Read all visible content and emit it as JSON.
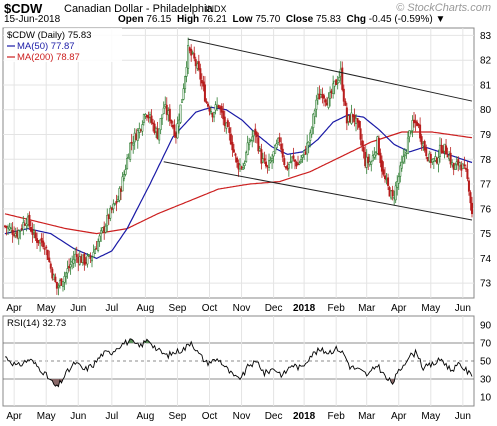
{
  "header": {
    "symbol": "$CDW",
    "name": "Canadian Dollar - Philadelphia",
    "exchange": "INDX",
    "logo": "© StockCharts.com",
    "date": "15-Jun-2018",
    "open_label": "Open",
    "open": "76.15",
    "high_label": "High",
    "high": "76.21",
    "low_label": "Low",
    "low": "75.70",
    "close_label": "Close",
    "close": "75.83",
    "chg_label": "Chg",
    "chg": "-0.45 (-0.59%)",
    "chg_arrow": "▼"
  },
  "legend": {
    "price_label": "$CDW (Daily) 75.83",
    "ma50_label": "MA(50) 77.87",
    "ma200_label": "MA(200) 78.87",
    "rsi_label": "RSI(14) 32.73"
  },
  "colors": {
    "bull": "#2e7d32",
    "bear": "#b71c1c",
    "ma50": "#1a1aa6",
    "ma200": "#cc1f1f",
    "rsi": "#000000",
    "grid": "#e4e4e4",
    "channel": "#222222",
    "overbought_fill": "#5a8f5a"
  },
  "chart_data": {
    "type": "candlestick",
    "x_ticks": [
      "Apr",
      "May",
      "Jun",
      "Jul",
      "Aug",
      "Sep",
      "Oct",
      "Nov",
      "Dec",
      "2018",
      "Feb",
      "Mar",
      "Apr",
      "May",
      "Jun"
    ],
    "y_ticks": [
      73,
      74,
      75,
      76,
      77,
      78,
      79,
      80,
      81,
      82,
      83
    ],
    "ylim": [
      72.4,
      83.3
    ],
    "rsi_ticks": [
      10,
      30,
      50,
      70,
      90
    ],
    "rsi_ylim": [
      0,
      100
    ],
    "rsi_levels": [
      30,
      50,
      70
    ],
    "close_anchors": [
      [
        0,
        75.3
      ],
      [
        8,
        75.0
      ],
      [
        14,
        75.6
      ],
      [
        20,
        74.8
      ],
      [
        26,
        74.6
      ],
      [
        30,
        73.6
      ],
      [
        34,
        72.8
      ],
      [
        40,
        73.4
      ],
      [
        46,
        74.1
      ],
      [
        52,
        73.9
      ],
      [
        56,
        74.0
      ],
      [
        62,
        74.8
      ],
      [
        68,
        75.7
      ],
      [
        74,
        76.4
      ],
      [
        78,
        77.4
      ],
      [
        82,
        78.6
      ],
      [
        88,
        79.2
      ],
      [
        92,
        80.0
      ],
      [
        96,
        79.5
      ],
      [
        100,
        79.0
      ],
      [
        104,
        80.1
      ],
      [
        108,
        79.7
      ],
      [
        112,
        79.0
      ],
      [
        116,
        80.5
      ],
      [
        120,
        82.4
      ],
      [
        124,
        82.0
      ],
      [
        128,
        81.3
      ],
      [
        132,
        80.3
      ],
      [
        136,
        79.9
      ],
      [
        140,
        80.2
      ],
      [
        144,
        79.4
      ],
      [
        148,
        78.8
      ],
      [
        152,
        77.8
      ],
      [
        156,
        77.7
      ],
      [
        160,
        78.7
      ],
      [
        164,
        79.1
      ],
      [
        168,
        78.0
      ],
      [
        172,
        77.6
      ],
      [
        176,
        78.2
      ],
      [
        180,
        78.8
      ],
      [
        184,
        77.6
      ],
      [
        188,
        78.0
      ],
      [
        192,
        77.8
      ],
      [
        196,
        78.2
      ],
      [
        200,
        78.9
      ],
      [
        204,
        80.4
      ],
      [
        208,
        80.7
      ],
      [
        212,
        80.3
      ],
      [
        216,
        81.0
      ],
      [
        220,
        81.5
      ],
      [
        224,
        79.5
      ],
      [
        228,
        79.8
      ],
      [
        232,
        79.1
      ],
      [
        236,
        77.9
      ],
      [
        240,
        77.9
      ],
      [
        244,
        78.7
      ],
      [
        248,
        77.3
      ],
      [
        252,
        76.7
      ],
      [
        254,
        76.4
      ],
      [
        258,
        77.3
      ],
      [
        262,
        78.2
      ],
      [
        266,
        79.3
      ],
      [
        270,
        79.5
      ],
      [
        274,
        78.6
      ],
      [
        278,
        78.0
      ],
      [
        282,
        77.9
      ],
      [
        286,
        78.5
      ],
      [
        290,
        78.3
      ],
      [
        294,
        77.6
      ],
      [
        298,
        77.9
      ],
      [
        302,
        77.4
      ],
      [
        304,
        76.9
      ],
      [
        306,
        75.8
      ]
    ],
    "ma50_anchors": [
      [
        0,
        75.0
      ],
      [
        15,
        75.2
      ],
      [
        30,
        75.0
      ],
      [
        45,
        74.4
      ],
      [
        60,
        74.0
      ],
      [
        70,
        74.3
      ],
      [
        80,
        75.2
      ],
      [
        95,
        77.0
      ],
      [
        110,
        78.9
      ],
      [
        125,
        79.9
      ],
      [
        135,
        80.1
      ],
      [
        145,
        80.0
      ],
      [
        155,
        79.6
      ],
      [
        165,
        79.0
      ],
      [
        175,
        78.5
      ],
      [
        185,
        78.2
      ],
      [
        195,
        78.3
      ],
      [
        205,
        78.8
      ],
      [
        215,
        79.5
      ],
      [
        225,
        79.8
      ],
      [
        235,
        79.7
      ],
      [
        245,
        79.2
      ],
      [
        255,
        78.6
      ],
      [
        265,
        78.3
      ],
      [
        275,
        78.5
      ],
      [
        285,
        78.3
      ],
      [
        295,
        78.1
      ],
      [
        306,
        77.87
      ]
    ],
    "ma200_anchors": [
      [
        0,
        75.8
      ],
      [
        20,
        75.5
      ],
      [
        40,
        75.2
      ],
      [
        60,
        75.0
      ],
      [
        80,
        75.2
      ],
      [
        100,
        75.8
      ],
      [
        120,
        76.3
      ],
      [
        140,
        76.8
      ],
      [
        160,
        77.0
      ],
      [
        180,
        77.1
      ],
      [
        200,
        77.5
      ],
      [
        220,
        78.1
      ],
      [
        240,
        78.7
      ],
      [
        260,
        79.1
      ],
      [
        280,
        79.1
      ],
      [
        306,
        78.87
      ]
    ],
    "channel_upper": [
      [
        120,
        82.85
      ],
      [
        306,
        80.35
      ]
    ],
    "channel_lower": [
      [
        104,
        77.9
      ],
      [
        306,
        75.55
      ]
    ],
    "rsi_anchors": [
      [
        0,
        55
      ],
      [
        8,
        44
      ],
      [
        16,
        52
      ],
      [
        24,
        40
      ],
      [
        30,
        28
      ],
      [
        34,
        20
      ],
      [
        40,
        36
      ],
      [
        46,
        48
      ],
      [
        52,
        40
      ],
      [
        58,
        46
      ],
      [
        64,
        58
      ],
      [
        70,
        60
      ],
      [
        74,
        66
      ],
      [
        78,
        70
      ],
      [
        82,
        72
      ],
      [
        88,
        66
      ],
      [
        94,
        74
      ],
      [
        100,
        62
      ],
      [
        106,
        56
      ],
      [
        112,
        60
      ],
      [
        118,
        64
      ],
      [
        122,
        72
      ],
      [
        126,
        60
      ],
      [
        132,
        48
      ],
      [
        140,
        52
      ],
      [
        148,
        36
      ],
      [
        152,
        30
      ],
      [
        156,
        34
      ],
      [
        160,
        46
      ],
      [
        166,
        48
      ],
      [
        170,
        36
      ],
      [
        176,
        42
      ],
      [
        182,
        34
      ],
      [
        188,
        46
      ],
      [
        194,
        42
      ],
      [
        200,
        56
      ],
      [
        206,
        62
      ],
      [
        212,
        60
      ],
      [
        218,
        64
      ],
      [
        222,
        58
      ],
      [
        226,
        44
      ],
      [
        232,
        40
      ],
      [
        238,
        34
      ],
      [
        244,
        46
      ],
      [
        250,
        30
      ],
      [
        254,
        26
      ],
      [
        258,
        38
      ],
      [
        264,
        54
      ],
      [
        270,
        60
      ],
      [
        274,
        42
      ],
      [
        280,
        46
      ],
      [
        286,
        52
      ],
      [
        292,
        40
      ],
      [
        298,
        46
      ],
      [
        302,
        40
      ],
      [
        306,
        32.73
      ]
    ]
  }
}
